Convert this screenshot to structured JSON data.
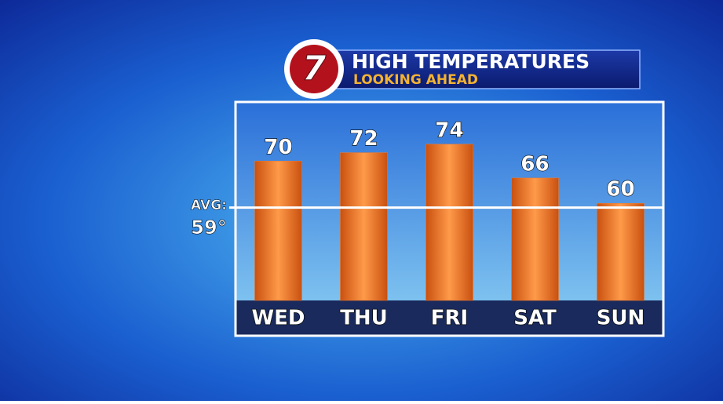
{
  "chart_data": {
    "type": "bar",
    "logo": "7",
    "title": "HIGH TEMPERATURES",
    "subtitle": "LOOKING AHEAD",
    "categories": [
      "WED",
      "THU",
      "FRI",
      "SAT",
      "SUN"
    ],
    "values": [
      70,
      72,
      74,
      66,
      60
    ],
    "color": "#f07a28",
    "ylim": [
      37,
      84
    ],
    "average": {
      "label": "AVG:",
      "value": 59,
      "value_label": "59°"
    }
  }
}
